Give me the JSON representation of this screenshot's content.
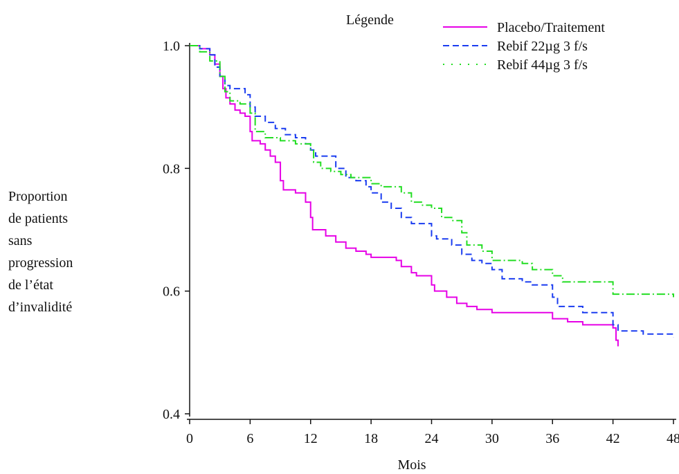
{
  "chart_data": {
    "type": "line",
    "step": true,
    "xlabel": "Mois",
    "ylabel": "Proportion\nde patients\nsans\nprogression\nde l’état\nd’invalidité",
    "xlim": [
      0,
      48
    ],
    "ylim": [
      0.4,
      1.0
    ],
    "x_ticks": [
      "0",
      "6",
      "12",
      "18",
      "24",
      "30",
      "36",
      "42",
      "48"
    ],
    "y_ticks": [
      "0.4",
      "0.6",
      "0.8",
      "1.0"
    ],
    "legend_title": "Légende",
    "legend_position": "top-right",
    "series": [
      {
        "name": "Placebo/Traitement",
        "color": "#e600e6",
        "style": "solid",
        "points": [
          [
            0,
            1.0
          ],
          [
            1,
            0.995
          ],
          [
            2,
            0.985
          ],
          [
            2.5,
            0.97
          ],
          [
            3,
            0.95
          ],
          [
            3.3,
            0.93
          ],
          [
            3.6,
            0.915
          ],
          [
            4,
            0.905
          ],
          [
            4.5,
            0.895
          ],
          [
            5,
            0.89
          ],
          [
            5.5,
            0.885
          ],
          [
            6,
            0.86
          ],
          [
            6.2,
            0.845
          ],
          [
            7,
            0.84
          ],
          [
            7.5,
            0.83
          ],
          [
            8,
            0.82
          ],
          [
            8.5,
            0.81
          ],
          [
            9,
            0.78
          ],
          [
            9.3,
            0.765
          ],
          [
            10.5,
            0.76
          ],
          [
            11.5,
            0.745
          ],
          [
            12,
            0.72
          ],
          [
            12.2,
            0.7
          ],
          [
            13.5,
            0.69
          ],
          [
            14.5,
            0.68
          ],
          [
            15.5,
            0.67
          ],
          [
            16.5,
            0.665
          ],
          [
            17.5,
            0.66
          ],
          [
            18,
            0.655
          ],
          [
            20.5,
            0.65
          ],
          [
            21,
            0.64
          ],
          [
            22,
            0.63
          ],
          [
            22.5,
            0.625
          ],
          [
            24,
            0.61
          ],
          [
            24.3,
            0.6
          ],
          [
            25.5,
            0.59
          ],
          [
            26.5,
            0.58
          ],
          [
            27.5,
            0.575
          ],
          [
            28.5,
            0.57
          ],
          [
            30,
            0.565
          ],
          [
            31,
            0.565
          ],
          [
            36,
            0.555
          ],
          [
            37.5,
            0.55
          ],
          [
            39,
            0.545
          ],
          [
            42,
            0.54
          ],
          [
            42.3,
            0.52
          ],
          [
            42.5,
            0.51
          ]
        ]
      },
      {
        "name": "Rebif 22µg 3 f/s",
        "color": "#1a3cf0",
        "style": "dashed",
        "points": [
          [
            0,
            1.0
          ],
          [
            1,
            0.995
          ],
          [
            2,
            0.985
          ],
          [
            2.5,
            0.965
          ],
          [
            3,
            0.95
          ],
          [
            3.5,
            0.935
          ],
          [
            4,
            0.93
          ],
          [
            5.5,
            0.92
          ],
          [
            6,
            0.9
          ],
          [
            6.5,
            0.885
          ],
          [
            7.5,
            0.875
          ],
          [
            8.5,
            0.865
          ],
          [
            9.5,
            0.855
          ],
          [
            10.5,
            0.85
          ],
          [
            11.5,
            0.84
          ],
          [
            12,
            0.83
          ],
          [
            12.5,
            0.82
          ],
          [
            14.5,
            0.8
          ],
          [
            15.5,
            0.785
          ],
          [
            16.5,
            0.78
          ],
          [
            17.5,
            0.77
          ],
          [
            18,
            0.76
          ],
          [
            19,
            0.745
          ],
          [
            20,
            0.735
          ],
          [
            21,
            0.72
          ],
          [
            22,
            0.71
          ],
          [
            24,
            0.69
          ],
          [
            24.5,
            0.685
          ],
          [
            26,
            0.675
          ],
          [
            27,
            0.66
          ],
          [
            28,
            0.65
          ],
          [
            29,
            0.645
          ],
          [
            30,
            0.635
          ],
          [
            31,
            0.62
          ],
          [
            33,
            0.615
          ],
          [
            34,
            0.61
          ],
          [
            36,
            0.59
          ],
          [
            36.5,
            0.575
          ],
          [
            39,
            0.565
          ],
          [
            42,
            0.545
          ],
          [
            42.5,
            0.535
          ],
          [
            45,
            0.53
          ],
          [
            48,
            0.525
          ]
        ]
      },
      {
        "name": "Rebif 44µg 3 f/s",
        "color": "#22dd22",
        "style": "dashdot",
        "points": [
          [
            0,
            1.0
          ],
          [
            1,
            0.99
          ],
          [
            2,
            0.975
          ],
          [
            3,
            0.95
          ],
          [
            3.5,
            0.925
          ],
          [
            4,
            0.91
          ],
          [
            5,
            0.905
          ],
          [
            6,
            0.89
          ],
          [
            6.5,
            0.86
          ],
          [
            7.5,
            0.85
          ],
          [
            9,
            0.845
          ],
          [
            10.5,
            0.84
          ],
          [
            12,
            0.83
          ],
          [
            12.3,
            0.81
          ],
          [
            13,
            0.8
          ],
          [
            14,
            0.795
          ],
          [
            15,
            0.79
          ],
          [
            16,
            0.785
          ],
          [
            18,
            0.775
          ],
          [
            19,
            0.77
          ],
          [
            21,
            0.76
          ],
          [
            22,
            0.745
          ],
          [
            23,
            0.74
          ],
          [
            24,
            0.735
          ],
          [
            25,
            0.72
          ],
          [
            26,
            0.715
          ],
          [
            27,
            0.695
          ],
          [
            27.5,
            0.675
          ],
          [
            29,
            0.665
          ],
          [
            30,
            0.65
          ],
          [
            33,
            0.645
          ],
          [
            34,
            0.635
          ],
          [
            36,
            0.625
          ],
          [
            37,
            0.615
          ],
          [
            42,
            0.595
          ],
          [
            48,
            0.59
          ]
        ]
      }
    ]
  }
}
